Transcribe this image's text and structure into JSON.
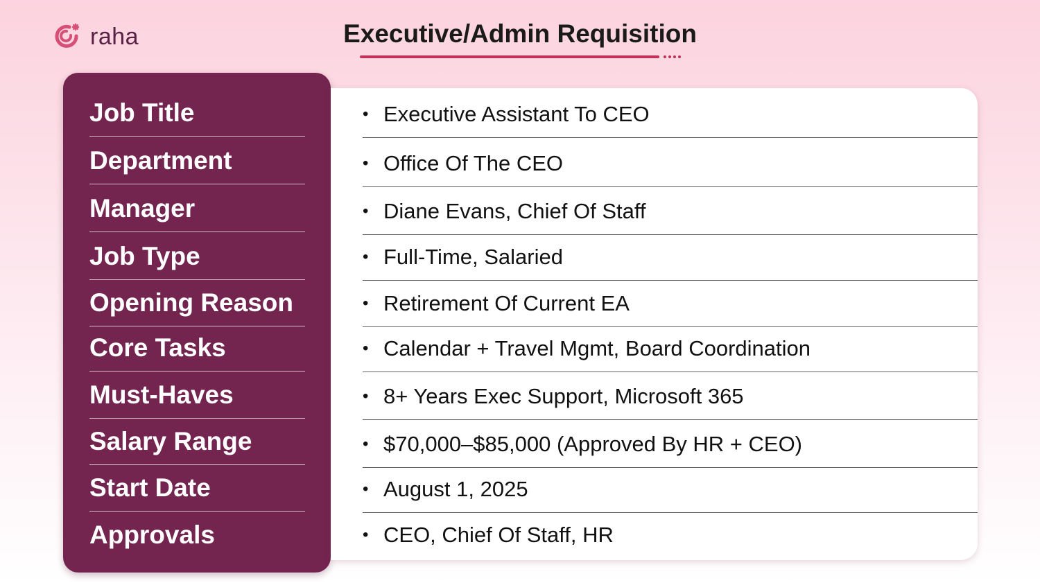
{
  "brand": {
    "name": "raha",
    "icon": "refresh-star-icon",
    "color": "#d64f76"
  },
  "title": "Executive/Admin Requisition",
  "colors": {
    "accent": "#c2315a",
    "panel": "#73254f",
    "text": "#111111"
  },
  "fields": [
    {
      "label": "Job Title",
      "value": "Executive Assistant To CEO"
    },
    {
      "label": "Department",
      "value": "Office Of The CEO"
    },
    {
      "label": "Manager",
      "value": "Diane Evans, Chief Of Staff"
    },
    {
      "label": "Job Type",
      "value": "Full-Time, Salaried"
    },
    {
      "label": "Opening Reason",
      "value": "Retirement Of Current EA"
    },
    {
      "label": "Core Tasks",
      "value": "Calendar + Travel Mgmt, Board Coordination"
    },
    {
      "label": "Must-Haves",
      "value": "8+ Years Exec Support, Microsoft 365"
    },
    {
      "label": "Salary Range",
      "value": "$70,000–$85,000 (Approved By HR + CEO)"
    },
    {
      "label": "Start Date",
      "value": "August 1, 2025"
    },
    {
      "label": "Approvals",
      "value": "CEO, Chief Of Staff, HR"
    }
  ]
}
